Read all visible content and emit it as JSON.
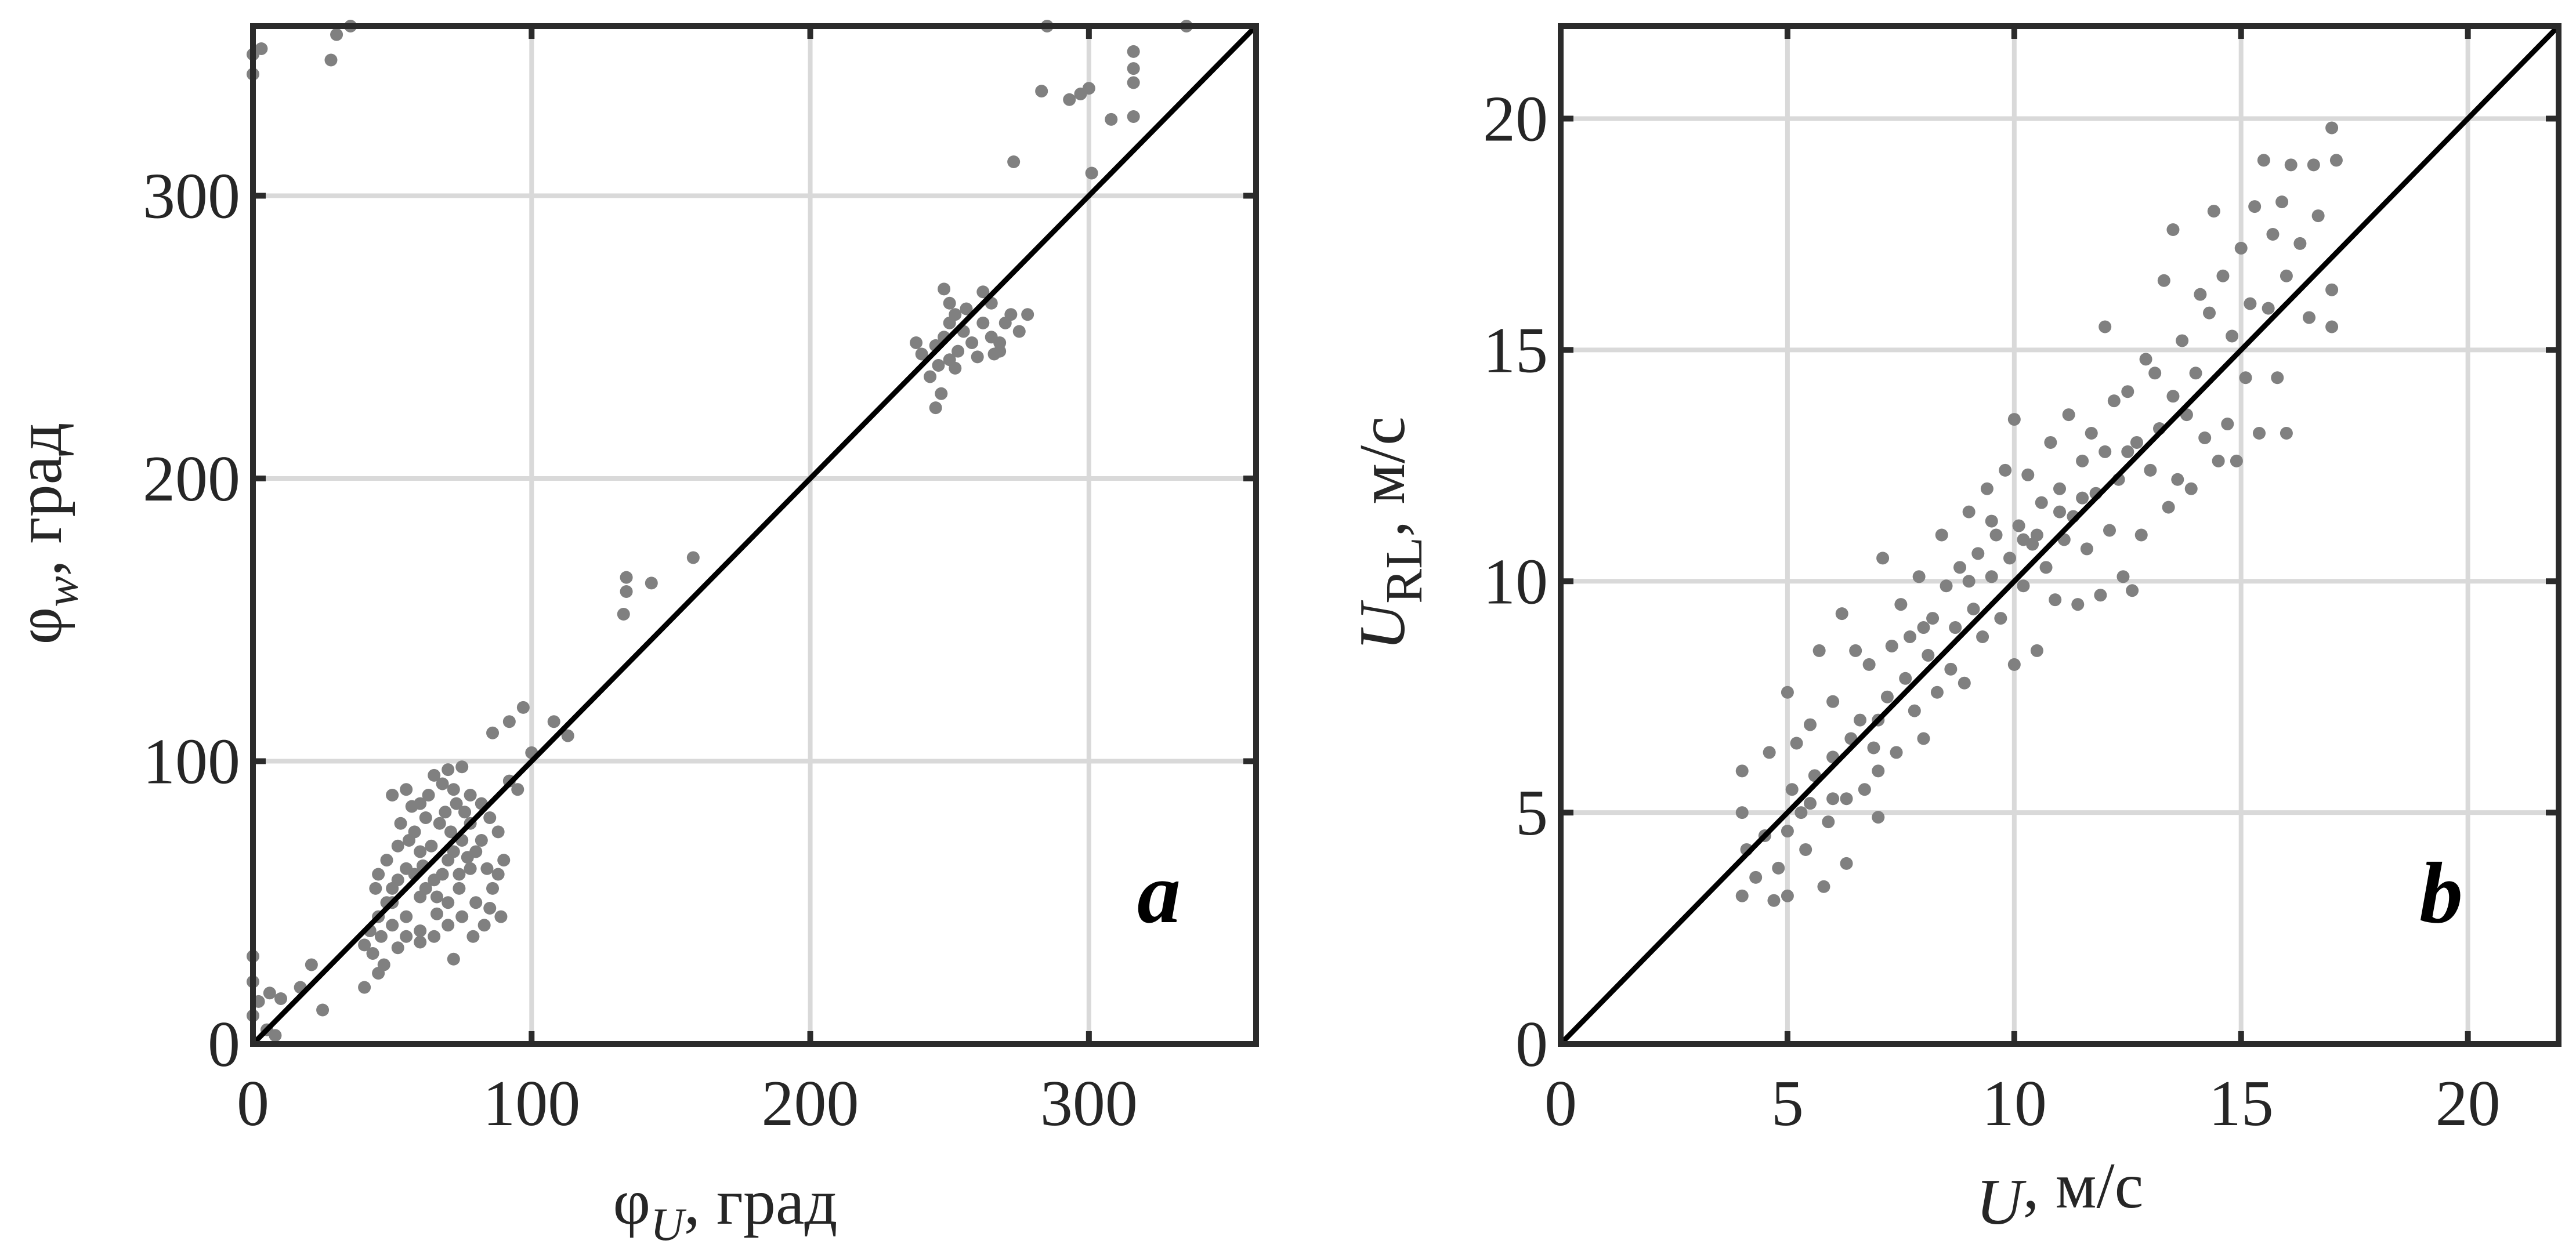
{
  "chart_data": [
    {
      "type": "scatter",
      "panel_label": "a",
      "xlabel": {
        "main": "φ",
        "sub": "U",
        "rest": ", град"
      },
      "ylabel": {
        "main": "φ",
        "sub": "w",
        "rest": ", град"
      },
      "xlim": [
        0,
        360
      ],
      "ylim": [
        0,
        360
      ],
      "xticks": [
        0,
        100,
        200,
        300
      ],
      "yticks": [
        0,
        100,
        200,
        300
      ],
      "grid": true,
      "reference_line": "y = x",
      "point_color": "#808080",
      "points": [
        [
          0,
          350
        ],
        [
          3,
          352
        ],
        [
          0,
          343
        ],
        [
          28,
          348
        ],
        [
          30,
          357
        ],
        [
          35,
          360
        ],
        [
          285,
          360
        ],
        [
          283,
          337
        ],
        [
          293,
          334
        ],
        [
          297,
          336
        ],
        [
          300,
          338
        ],
        [
          308,
          327
        ],
        [
          316,
          328
        ],
        [
          316,
          340
        ],
        [
          316,
          345
        ],
        [
          316,
          351
        ],
        [
          335,
          360
        ],
        [
          273,
          312
        ],
        [
          301,
          308
        ],
        [
          245,
          247
        ],
        [
          248,
          250
        ],
        [
          250,
          255
        ],
        [
          252,
          258
        ],
        [
          250,
          262
        ],
        [
          248,
          267
        ],
        [
          255,
          252
        ],
        [
          258,
          248
        ],
        [
          246,
          240
        ],
        [
          243,
          236
        ],
        [
          245,
          225
        ],
        [
          247,
          230
        ],
        [
          240,
          244
        ],
        [
          238,
          248
        ],
        [
          253,
          245
        ],
        [
          256,
          260
        ],
        [
          262,
          255
        ],
        [
          265,
          250
        ],
        [
          268,
          248
        ],
        [
          270,
          255
        ],
        [
          272,
          258
        ],
        [
          265,
          262
        ],
        [
          262,
          266
        ],
        [
          268,
          245
        ],
        [
          275,
          252
        ],
        [
          278,
          258
        ],
        [
          250,
          242
        ],
        [
          252,
          239
        ],
        [
          260,
          243
        ],
        [
          266,
          244
        ],
        [
          133,
          152
        ],
        [
          134,
          160
        ],
        [
          134,
          165
        ],
        [
          143,
          163
        ],
        [
          158,
          172
        ],
        [
          86,
          110
        ],
        [
          92,
          114
        ],
        [
          97,
          119
        ],
        [
          108,
          114
        ],
        [
          113,
          109
        ],
        [
          100,
          103
        ],
        [
          92,
          93
        ],
        [
          95,
          90
        ],
        [
          0,
          31
        ],
        [
          0,
          22
        ],
        [
          2,
          15
        ],
        [
          0,
          10
        ],
        [
          5,
          5
        ],
        [
          8,
          3
        ],
        [
          6,
          18
        ],
        [
          10,
          16
        ],
        [
          17,
          20
        ],
        [
          21,
          28
        ],
        [
          25,
          12
        ],
        [
          40,
          20
        ],
        [
          45,
          25
        ],
        [
          50,
          88
        ],
        [
          55,
          90
        ],
        [
          60,
          85
        ],
        [
          65,
          95
        ],
        [
          70,
          97
        ],
        [
          75,
          98
        ],
        [
          68,
          92
        ],
        [
          72,
          90
        ],
        [
          78,
          88
        ],
        [
          62,
          80
        ],
        [
          58,
          75
        ],
        [
          52,
          70
        ],
        [
          48,
          65
        ],
        [
          45,
          60
        ],
        [
          44,
          55
        ],
        [
          50,
          50
        ],
        [
          55,
          45
        ],
        [
          60,
          40
        ],
        [
          65,
          38
        ],
        [
          70,
          42
        ],
        [
          75,
          45
        ],
        [
          80,
          50
        ],
        [
          85,
          48
        ],
        [
          86,
          55
        ],
        [
          88,
          60
        ],
        [
          90,
          65
        ],
        [
          88,
          75
        ],
        [
          85,
          80
        ],
        [
          82,
          85
        ],
        [
          78,
          78
        ],
        [
          75,
          72
        ],
        [
          72,
          68
        ],
        [
          70,
          65
        ],
        [
          68,
          60
        ],
        [
          65,
          58
        ],
        [
          62,
          55
        ],
        [
          60,
          52
        ],
        [
          58,
          60
        ],
        [
          55,
          62
        ],
        [
          52,
          58
        ],
        [
          50,
          55
        ],
        [
          48,
          50
        ],
        [
          45,
          45
        ],
        [
          42,
          40
        ],
        [
          40,
          35
        ],
        [
          43,
          32
        ],
        [
          46,
          38
        ],
        [
          50,
          42
        ],
        [
          55,
          38
        ],
        [
          60,
          36
        ],
        [
          66,
          46
        ],
        [
          70,
          50
        ],
        [
          74,
          55
        ],
        [
          78,
          62
        ],
        [
          80,
          68
        ],
        [
          82,
          72
        ],
        [
          76,
          82
        ],
        [
          73,
          85
        ],
        [
          67,
          78
        ],
        [
          64,
          70
        ],
        [
          60,
          68
        ],
        [
          56,
          72
        ],
        [
          53,
          78
        ],
        [
          57,
          84
        ],
        [
          63,
          88
        ],
        [
          69,
          82
        ],
        [
          71,
          75
        ],
        [
          77,
          66
        ],
        [
          84,
          62
        ],
        [
          89,
          45
        ],
        [
          72,
          30
        ],
        [
          79,
          38
        ],
        [
          83,
          42
        ],
        [
          47,
          28
        ],
        [
          52,
          34
        ],
        [
          66,
          52
        ],
        [
          61,
          63
        ],
        [
          74,
          60
        ]
      ]
    },
    {
      "type": "scatter",
      "panel_label": "b",
      "xlabel": {
        "main": "U",
        "sub": "",
        "rest": ", м/с"
      },
      "ylabel": {
        "main": "U",
        "sub": "RL",
        "rest": ", м/с"
      },
      "xlim": [
        0,
        22
      ],
      "ylim": [
        0,
        22
      ],
      "xticks": [
        0,
        5,
        10,
        15,
        20
      ],
      "yticks": [
        0,
        5,
        10,
        15,
        20
      ],
      "grid": true,
      "reference_line": "y = x",
      "point_color": "#808080",
      "points": [
        [
          4,
          3.2
        ],
        [
          4.1,
          4.2
        ],
        [
          4.0,
          5.0
        ],
        [
          4.0,
          5.9
        ],
        [
          4.3,
          3.6
        ],
        [
          4.5,
          4.5
        ],
        [
          4.6,
          6.3
        ],
        [
          4.7,
          3.1
        ],
        [
          4.8,
          3.8
        ],
        [
          5.0,
          3.2
        ],
        [
          5.0,
          4.6
        ],
        [
          5.1,
          5.5
        ],
        [
          5.2,
          6.5
        ],
        [
          5.0,
          7.6
        ],
        [
          5.3,
          5.0
        ],
        [
          5.4,
          4.2
        ],
        [
          5.5,
          6.9
        ],
        [
          5.6,
          5.8
        ],
        [
          5.7,
          8.5
        ],
        [
          5.8,
          3.4
        ],
        [
          5.9,
          4.8
        ],
        [
          6.0,
          6.2
        ],
        [
          6.0,
          7.4
        ],
        [
          6.2,
          9.3
        ],
        [
          6.3,
          3.9
        ],
        [
          6.3,
          5.3
        ],
        [
          6.4,
          6.6
        ],
        [
          6.5,
          8.5
        ],
        [
          6.6,
          7.0
        ],
        [
          6.7,
          5.5
        ],
        [
          6.8,
          8.2
        ],
        [
          6.9,
          6.4
        ],
        [
          7.0,
          4.9
        ],
        [
          7.0,
          5.9
        ],
        [
          7.1,
          10.5
        ],
        [
          7.2,
          7.5
        ],
        [
          7.3,
          8.6
        ],
        [
          7.4,
          6.3
        ],
        [
          7.5,
          9.5
        ],
        [
          7.6,
          7.9
        ],
        [
          7.7,
          8.8
        ],
        [
          7.8,
          7.2
        ],
        [
          7.9,
          10.1
        ],
        [
          8.0,
          6.6
        ],
        [
          8.1,
          8.4
        ],
        [
          8.2,
          9.2
        ],
        [
          8.3,
          7.6
        ],
        [
          8.4,
          11.0
        ],
        [
          8.5,
          9.9
        ],
        [
          8.6,
          8.1
        ],
        [
          8.7,
          9.0
        ],
        [
          8.8,
          10.3
        ],
        [
          8.9,
          7.8
        ],
        [
          9.0,
          11.5
        ],
        [
          9.1,
          9.4
        ],
        [
          9.2,
          10.6
        ],
        [
          9.3,
          8.8
        ],
        [
          9.4,
          12.0
        ],
        [
          9.5,
          10.1
        ],
        [
          9.6,
          11.0
        ],
        [
          9.7,
          9.2
        ],
        [
          9.8,
          12.4
        ],
        [
          9.9,
          10.5
        ],
        [
          10.0,
          13.5
        ],
        [
          10.0,
          8.2
        ],
        [
          10.1,
          11.2
        ],
        [
          10.2,
          9.9
        ],
        [
          10.3,
          12.3
        ],
        [
          10.4,
          10.8
        ],
        [
          10.5,
          8.5
        ],
        [
          10.6,
          11.7
        ],
        [
          10.7,
          10.3
        ],
        [
          10.8,
          13.0
        ],
        [
          10.9,
          9.6
        ],
        [
          11.0,
          12.0
        ],
        [
          11.1,
          10.9
        ],
        [
          11.2,
          13.6
        ],
        [
          11.3,
          11.4
        ],
        [
          11.4,
          9.5
        ],
        [
          11.5,
          12.6
        ],
        [
          11.6,
          10.7
        ],
        [
          11.7,
          13.2
        ],
        [
          11.8,
          11.9
        ],
        [
          11.9,
          9.7
        ],
        [
          12.0,
          12.8
        ],
        [
          12.0,
          15.5
        ],
        [
          12.1,
          11.1
        ],
        [
          12.2,
          13.9
        ],
        [
          12.3,
          12.2
        ],
        [
          12.4,
          10.1
        ],
        [
          12.5,
          14.1
        ],
        [
          12.6,
          9.8
        ],
        [
          12.7,
          13.0
        ],
        [
          12.8,
          11.0
        ],
        [
          12.9,
          14.8
        ],
        [
          13.0,
          12.4
        ],
        [
          13.1,
          14.5
        ],
        [
          13.2,
          13.3
        ],
        [
          13.3,
          16.5
        ],
        [
          13.4,
          11.6
        ],
        [
          13.5,
          17.6
        ],
        [
          13.5,
          14.0
        ],
        [
          13.6,
          12.2
        ],
        [
          13.7,
          15.2
        ],
        [
          13.8,
          13.6
        ],
        [
          13.9,
          12.0
        ],
        [
          14.0,
          14.5
        ],
        [
          14.1,
          16.2
        ],
        [
          14.2,
          13.1
        ],
        [
          14.3,
          15.8
        ],
        [
          14.4,
          18.0
        ],
        [
          14.5,
          12.6
        ],
        [
          14.6,
          16.6
        ],
        [
          14.7,
          13.4
        ],
        [
          14.8,
          15.3
        ],
        [
          14.9,
          12.6
        ],
        [
          15.0,
          17.2
        ],
        [
          15.1,
          14.4
        ],
        [
          15.2,
          16.0
        ],
        [
          15.3,
          18.1
        ],
        [
          15.4,
          13.2
        ],
        [
          15.5,
          19.1
        ],
        [
          15.6,
          15.9
        ],
        [
          15.7,
          17.5
        ],
        [
          15.8,
          14.4
        ],
        [
          15.9,
          18.2
        ],
        [
          16.0,
          16.6
        ],
        [
          16.0,
          13.2
        ],
        [
          16.1,
          19.0
        ],
        [
          16.3,
          17.3
        ],
        [
          16.5,
          15.7
        ],
        [
          16.6,
          19.0
        ],
        [
          16.7,
          17.9
        ],
        [
          17.0,
          19.8
        ],
        [
          17.0,
          16.3
        ],
        [
          17.0,
          15.5
        ],
        [
          17.1,
          19.1
        ],
        [
          9.5,
          11.3
        ],
        [
          10.5,
          11.0
        ],
        [
          11.0,
          11.5
        ],
        [
          8.0,
          9.0
        ],
        [
          7.0,
          7.0
        ],
        [
          6.0,
          5.3
        ],
        [
          5.5,
          5.2
        ],
        [
          12.5,
          12.8
        ],
        [
          9.0,
          10.0
        ],
        [
          10.2,
          10.9
        ],
        [
          11.5,
          11.8
        ]
      ]
    }
  ]
}
